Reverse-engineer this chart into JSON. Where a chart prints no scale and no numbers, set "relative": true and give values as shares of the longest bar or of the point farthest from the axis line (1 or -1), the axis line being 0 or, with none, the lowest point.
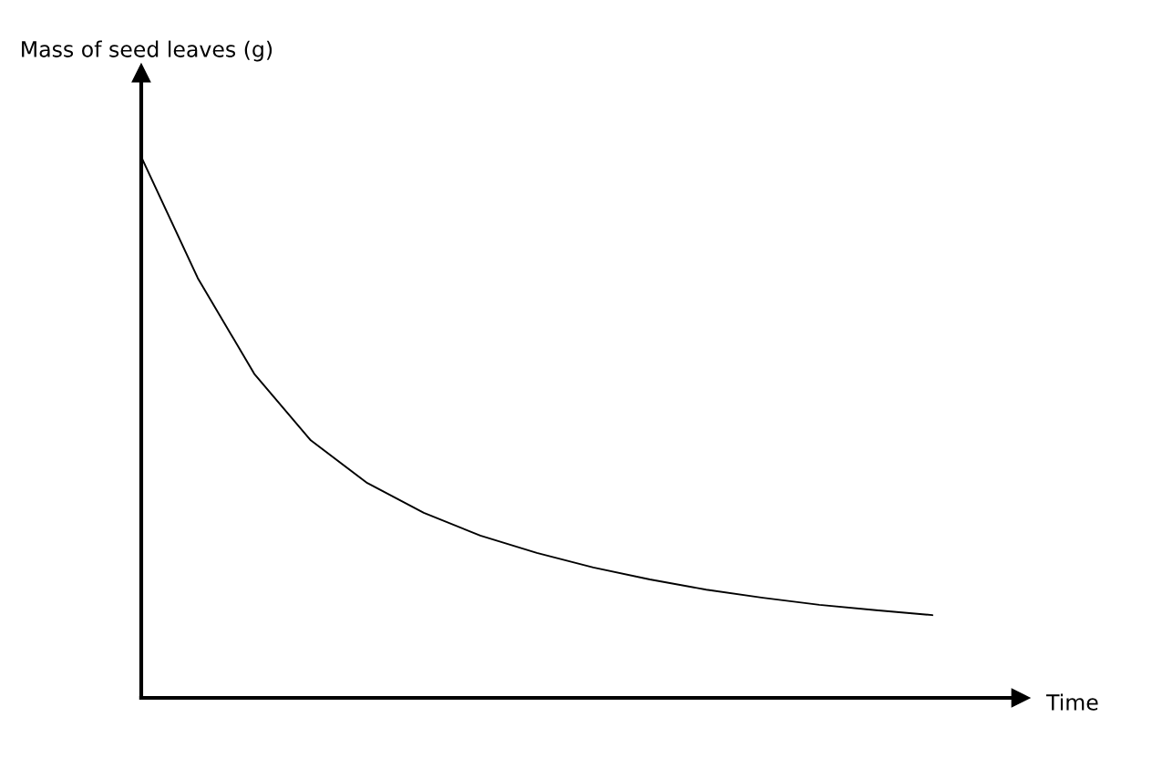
{
  "chart_data": {
    "type": "line",
    "relative": true,
    "xlabel": "Time",
    "ylabel": "Mass of seed leaves (g)",
    "color": "#000000",
    "categories": [
      null,
      null,
      null,
      null,
      null,
      null,
      null,
      null,
      null,
      null,
      null,
      null,
      null,
      null,
      null
    ],
    "values": [
      1,
      0.776,
      0.599,
      0.476,
      0.397,
      0.342,
      0.3,
      0.268,
      0.241,
      0.219,
      0.2,
      0.185,
      0.172,
      0.162,
      0.153
    ]
  }
}
